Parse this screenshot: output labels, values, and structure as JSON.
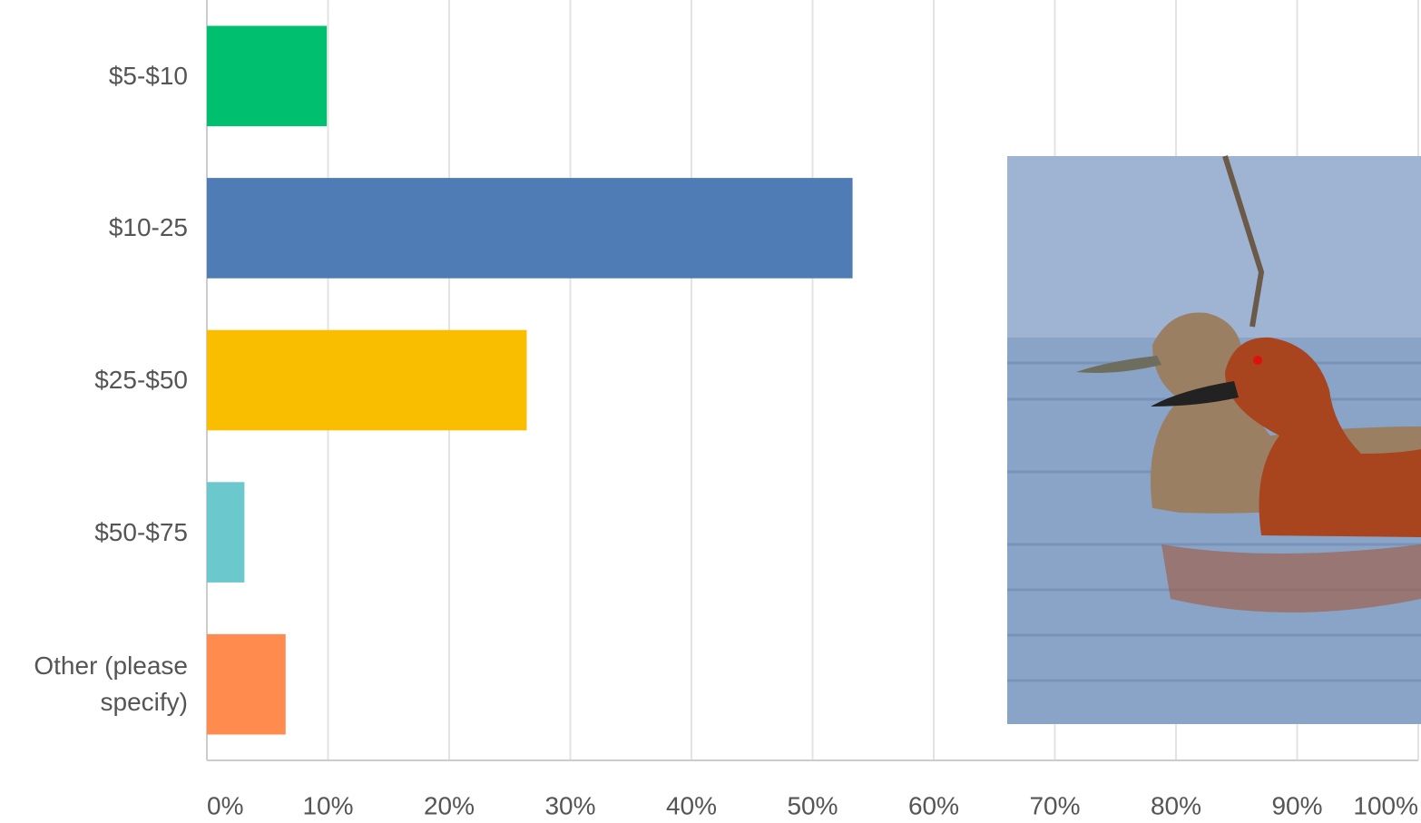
{
  "chart_data": {
    "type": "bar",
    "orientation": "horizontal",
    "categories": [
      "$5-$10",
      "$10-25",
      "$25-$50",
      "$50-$75",
      "Other (please specify)"
    ],
    "values": [
      9.9,
      53.3,
      26.4,
      3.1,
      6.5
    ],
    "colors": [
      "#00bf6f",
      "#507cb6",
      "#f9be00",
      "#6bc8cd",
      "#ff8b4f"
    ],
    "xlim": [
      0,
      100
    ],
    "xticks": [
      {
        "value": 0,
        "label": "0%"
      },
      {
        "value": 10,
        "label": "10%"
      },
      {
        "value": 20,
        "label": "20%"
      },
      {
        "value": 30,
        "label": "30%"
      },
      {
        "value": 40,
        "label": "40%"
      },
      {
        "value": 50,
        "label": "50%"
      },
      {
        "value": 60,
        "label": "60%"
      },
      {
        "value": 70,
        "label": "70%"
      },
      {
        "value": 80,
        "label": "80%"
      },
      {
        "value": 90,
        "label": "90%"
      },
      {
        "value": 100,
        "label": "100%"
      }
    ],
    "grid": true
  }
}
